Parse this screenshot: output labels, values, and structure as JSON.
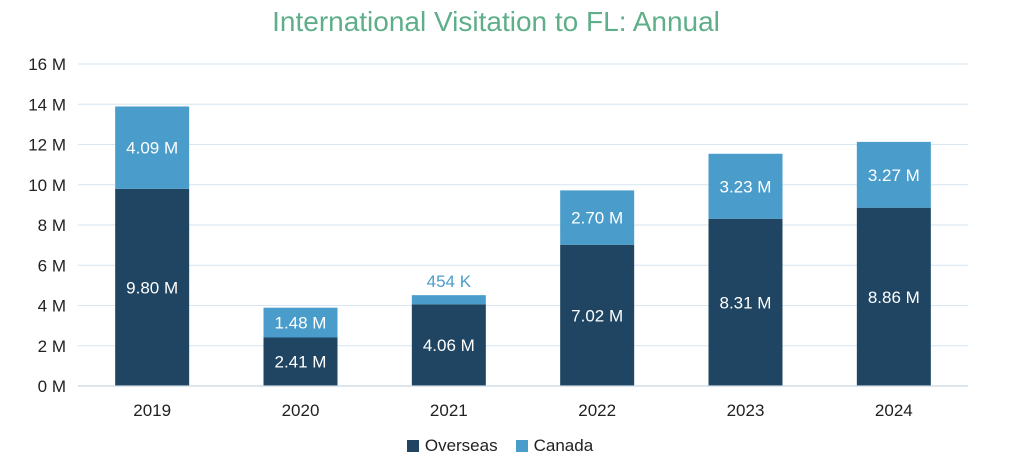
{
  "chart_data": {
    "type": "bar",
    "stacked": true,
    "title": "International Visitation to FL: Annual",
    "categories": [
      "2019",
      "2020",
      "2021",
      "2022",
      "2023",
      "2024"
    ],
    "series": [
      {
        "name": "Overseas",
        "color": "#1f4562",
        "values": [
          9.8,
          2.41,
          4.06,
          7.02,
          8.31,
          8.86
        ],
        "labels": [
          "9.80 M",
          "2.41 M",
          "4.06 M",
          "7.02 M",
          "8.31 M",
          "8.86 M"
        ]
      },
      {
        "name": "Canada",
        "color": "#4a9dcb",
        "values": [
          4.09,
          1.48,
          0.454,
          2.7,
          3.23,
          3.27
        ],
        "labels": [
          "4.09 M",
          "1.48 M",
          "454 K",
          "2.70 M",
          "3.23 M",
          "3.27 M"
        ]
      }
    ],
    "ylim": [
      0,
      16
    ],
    "yticks": [
      0,
      2,
      4,
      6,
      8,
      10,
      12,
      14,
      16
    ],
    "ytick_labels": [
      "0 M",
      "2 M",
      "4 M",
      "6 M",
      "8 M",
      "10 M",
      "12 M",
      "14 M",
      "16 M"
    ],
    "grid": true,
    "legend_position": "bottom",
    "xlabel": "",
    "ylabel": ""
  }
}
